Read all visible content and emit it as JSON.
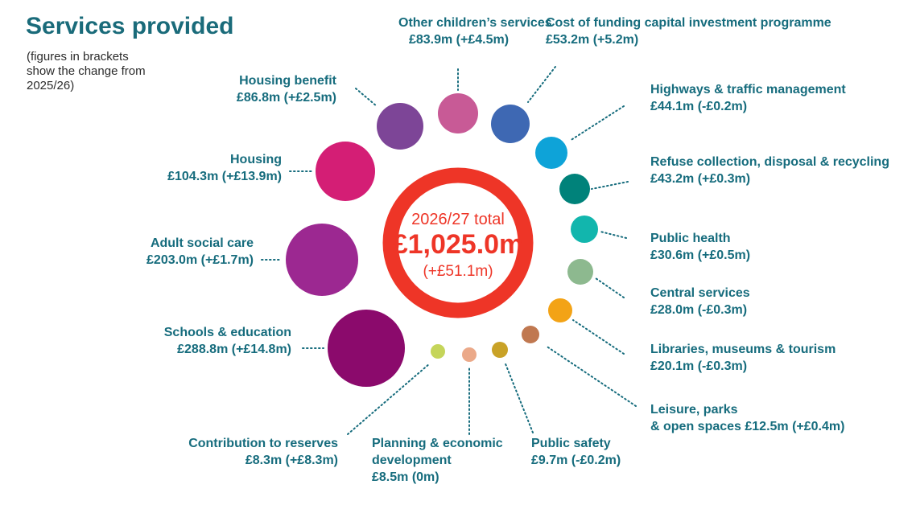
{
  "title": "Services provided",
  "note": "(figures in brackets show the change from 2025/26)",
  "total": {
    "year_label": "2026/27 total",
    "value": "£1,025.0m",
    "change": "(+£51.1m)",
    "color": "#ee3527"
  },
  "services": [
    {
      "id": "schools-education",
      "lines": [
        "Schools & education",
        "£288.8m (+£14.8m)"
      ],
      "amount": 288.8,
      "change": 14.8,
      "color": "#8b0a6c"
    },
    {
      "id": "adult-social-care",
      "lines": [
        "Adult social care",
        "£203.0m  (+£1.7m)"
      ],
      "amount": 203.0,
      "change": 1.7,
      "color": "#9c2891"
    },
    {
      "id": "housing",
      "lines": [
        "Housing",
        "£104.3m  (+£13.9m)"
      ],
      "amount": 104.3,
      "change": 13.9,
      "color": "#d41e75"
    },
    {
      "id": "housing-benefit",
      "lines": [
        "Housing benefit",
        "£86.8m  (+£2.5m)"
      ],
      "amount": 86.8,
      "change": 2.5,
      "color": "#7d4597"
    },
    {
      "id": "other-childrens-services",
      "lines": [
        "Other children’s services",
        "£83.9m (+£4.5m)"
      ],
      "amount": 83.9,
      "change": 4.5,
      "color": "#c85a96"
    },
    {
      "id": "cost-of-funding",
      "lines": [
        "Cost of funding capital investment programme",
        "£53.2m (+5.2m)"
      ],
      "amount": 53.2,
      "change": 5.2,
      "color": "#3e68b3"
    },
    {
      "id": "highways",
      "lines": [
        "Highways & traffic management",
        "£44.1m (-£0.2m)"
      ],
      "amount": 44.1,
      "change": -0.2,
      "color": "#0ea3d8"
    },
    {
      "id": "refuse",
      "lines": [
        "Refuse collection, disposal & recycling",
        "£43.2m (+£0.3m)"
      ],
      "amount": 43.2,
      "change": 0.3,
      "color": "#00827a"
    },
    {
      "id": "public-health",
      "lines": [
        "Public health",
        "£30.6m (+£0.5m)"
      ],
      "amount": 30.6,
      "change": 0.5,
      "color": "#12b6ad"
    },
    {
      "id": "central-services",
      "lines": [
        "Central services",
        "£28.0m (-£0.3m)"
      ],
      "amount": 28.0,
      "change": -0.3,
      "color": "#8db98f"
    },
    {
      "id": "libraries",
      "lines": [
        "Libraries, museums & tourism",
        "£20.1m (-£0.3m)"
      ],
      "amount": 20.1,
      "change": -0.3,
      "color": "#f3a316"
    },
    {
      "id": "leisure",
      "lines": [
        "Leisure, parks",
        "& open spaces £12.5m (+£0.4m)"
      ],
      "amount": 12.5,
      "change": 0.4,
      "color": "#c07850"
    },
    {
      "id": "public-safety",
      "lines": [
        "Public safety",
        "£9.7m  (-£0.2m)"
      ],
      "amount": 9.7,
      "change": -0.2,
      "color": "#c9a227"
    },
    {
      "id": "planning",
      "lines": [
        "Planning & economic",
        "development",
        "£8.5m (0m)"
      ],
      "amount": 8.5,
      "change": 0,
      "color": "#eba989"
    },
    {
      "id": "reserves",
      "lines": [
        "Contribution to reserves",
        "£8.3m (+£8.3m)"
      ],
      "amount": 8.3,
      "change": 8.3,
      "color": "#c5d55a"
    }
  ]
}
